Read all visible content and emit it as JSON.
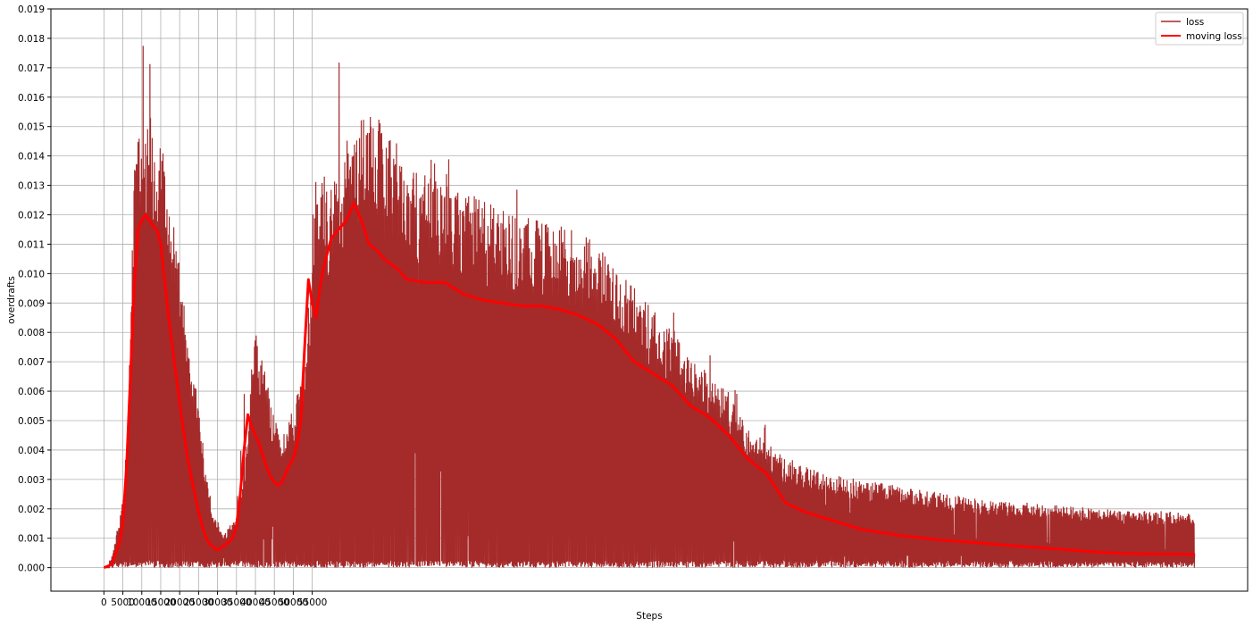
{
  "chart_data": {
    "type": "line",
    "title": "",
    "xlabel": "Steps",
    "ylabel": "overdrafts",
    "xlim": [
      -14000,
      302000
    ],
    "ylim": [
      -0.0008,
      0.019
    ],
    "x_ticks": [
      0,
      5000,
      10000,
      15000,
      20000,
      25000,
      30000,
      35000,
      40000,
      45000,
      50000,
      55000
    ],
    "x_tick_labels": [
      "0",
      "5000",
      "10000",
      "15000",
      "20000",
      "25000",
      "30000",
      "35000",
      "40000",
      "45000",
      "50000",
      "55000"
    ],
    "y_ticks": [
      0.0,
      0.001,
      0.002,
      0.003,
      0.004,
      0.005,
      0.006,
      0.007,
      0.008,
      0.009,
      0.01,
      0.011,
      0.012,
      0.013,
      0.014,
      0.015,
      0.016,
      0.017,
      0.018,
      0.019
    ],
    "y_tick_labels": [
      "0.000",
      "0.001",
      "0.002",
      "0.003",
      "0.004",
      "0.005",
      "0.006",
      "0.007",
      "0.008",
      "0.009",
      "0.010",
      "0.011",
      "0.012",
      "0.013",
      "0.014",
      "0.015",
      "0.016",
      "0.017",
      "0.018",
      "0.019"
    ],
    "grid": true,
    "legend_position": "top-right",
    "series": [
      {
        "name": "loss",
        "color": "#a52a2a",
        "style": "noisy-line",
        "envelope_x": [
          0,
          2000,
          4000,
          5000,
          6000,
          7000,
          8000,
          9000,
          10000,
          11000,
          12000,
          13000,
          14000,
          15000,
          16000,
          17000,
          18000,
          19000,
          20000,
          21000,
          22000,
          23000,
          24000,
          25000,
          26000,
          27000,
          28000,
          29000,
          30000,
          31000,
          32000,
          33000,
          34000,
          35000,
          36000,
          37000,
          38000,
          39000,
          40000,
          41000,
          42000,
          43000,
          44000,
          45000,
          46000,
          47000,
          48000,
          49000,
          50000,
          51000,
          52000,
          53000,
          54000,
          55000,
          56000,
          57000,
          58000,
          60000,
          62000,
          64000,
          66000,
          68000,
          70000,
          72000,
          74000,
          76000,
          78000,
          80000,
          85000,
          90000,
          95000,
          100000,
          105000,
          110000,
          115000,
          120000,
          125000,
          130000,
          135000,
          140000,
          145000,
          150000,
          155000,
          160000,
          165000,
          170000,
          175000,
          180000,
          185000,
          190000,
          200000,
          210000,
          220000,
          230000,
          240000,
          250000,
          260000,
          270000,
          280000,
          288000
        ],
        "envelope_y": [
          0.0,
          0.0003,
          0.0015,
          0.0022,
          0.0035,
          0.008,
          0.0125,
          0.0142,
          0.0142,
          0.0145,
          0.0145,
          0.014,
          0.0138,
          0.0137,
          0.013,
          0.012,
          0.0115,
          0.0105,
          0.0095,
          0.0085,
          0.0075,
          0.0065,
          0.006,
          0.0052,
          0.0042,
          0.003,
          0.0024,
          0.0017,
          0.0015,
          0.0012,
          0.0011,
          0.0013,
          0.0015,
          0.0017,
          0.0022,
          0.003,
          0.0045,
          0.0065,
          0.0075,
          0.0072,
          0.0065,
          0.006,
          0.0055,
          0.0048,
          0.0044,
          0.0042,
          0.0043,
          0.0048,
          0.0052,
          0.0055,
          0.006,
          0.0065,
          0.0075,
          0.0095,
          0.0125,
          0.0118,
          0.012,
          0.0122,
          0.0127,
          0.0132,
          0.0138,
          0.0143,
          0.0152,
          0.0145,
          0.0142,
          0.0135,
          0.0132,
          0.0128,
          0.0125,
          0.0122,
          0.012,
          0.0117,
          0.0115,
          0.0113,
          0.0111,
          0.011,
          0.0107,
          0.0103,
          0.0098,
          0.009,
          0.0082,
          0.0075,
          0.0068,
          0.0062,
          0.0055,
          0.0045,
          0.004,
          0.0035,
          0.0033,
          0.003,
          0.0028,
          0.0026,
          0.0024,
          0.0022,
          0.0021,
          0.002,
          0.0019,
          0.0018,
          0.0018,
          0.0017
        ],
        "baseline_y": 0.00015
      },
      {
        "name": "moving loss",
        "color": "#ff0000",
        "style": "line",
        "x": [
          0,
          2000,
          4000,
          5000,
          6000,
          7000,
          8000,
          9000,
          10000,
          11000,
          12000,
          13000,
          14000,
          15000,
          16000,
          17000,
          18000,
          19000,
          20000,
          21000,
          22000,
          23000,
          24000,
          25000,
          26000,
          27000,
          28000,
          29000,
          30000,
          31000,
          32000,
          33000,
          34000,
          35000,
          36000,
          37000,
          38000,
          39000,
          40000,
          41000,
          42000,
          43000,
          44000,
          45000,
          46000,
          47000,
          48000,
          49000,
          50000,
          51000,
          52000,
          53000,
          54000,
          55000,
          56000,
          57000,
          58000,
          60000,
          62000,
          64000,
          66000,
          68000,
          70000,
          72000,
          74000,
          76000,
          78000,
          80000,
          85000,
          90000,
          95000,
          100000,
          105000,
          110000,
          115000,
          120000,
          125000,
          130000,
          135000,
          140000,
          145000,
          150000,
          155000,
          160000,
          165000,
          170000,
          175000,
          180000,
          185000,
          190000,
          200000,
          210000,
          220000,
          230000,
          240000,
          250000,
          260000,
          270000,
          280000,
          288000
        ],
        "values": [
          0.0,
          0.0001,
          0.0008,
          0.0015,
          0.0035,
          0.0065,
          0.0095,
          0.0115,
          0.0118,
          0.012,
          0.0118,
          0.0116,
          0.0115,
          0.011,
          0.0098,
          0.0086,
          0.0076,
          0.0066,
          0.0056,
          0.0047,
          0.0038,
          0.0031,
          0.0025,
          0.0019,
          0.0014,
          0.001,
          0.0008,
          0.00068,
          0.0006,
          0.00068,
          0.00078,
          0.00088,
          0.001,
          0.0014,
          0.0025,
          0.004,
          0.0052,
          0.0048,
          0.0045,
          0.0042,
          0.0038,
          0.0034,
          0.0031,
          0.0029,
          0.0028,
          0.0029,
          0.0032,
          0.0035,
          0.0037,
          0.0042,
          0.005,
          0.0075,
          0.0098,
          0.009,
          0.0085,
          0.0095,
          0.0102,
          0.0112,
          0.0115,
          0.0118,
          0.0124,
          0.0118,
          0.011,
          0.0108,
          0.0105,
          0.0103,
          0.0101,
          0.0098,
          0.0097,
          0.0097,
          0.0093,
          0.0091,
          0.009,
          0.0089,
          0.0089,
          0.0088,
          0.0086,
          0.0083,
          0.0078,
          0.007,
          0.0066,
          0.0062,
          0.0055,
          0.0051,
          0.0045,
          0.0037,
          0.0032,
          0.0022,
          0.0019,
          0.0017,
          0.0013,
          0.0011,
          0.00095,
          0.00085,
          0.00075,
          0.00065,
          0.00055,
          0.00048,
          0.00046,
          0.00045
        ]
      }
    ]
  }
}
